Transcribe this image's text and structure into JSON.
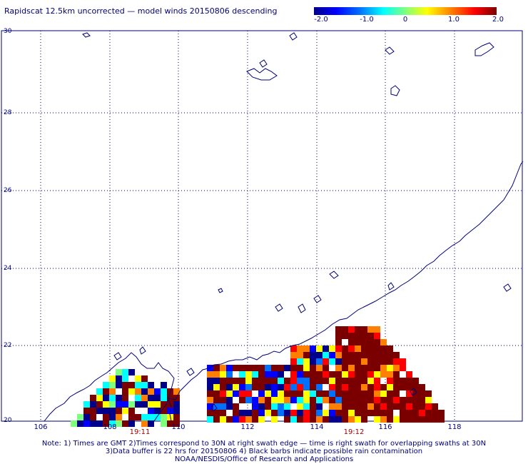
{
  "title": "Rapidscat 12.5km uncorrected — model winds 20150806 descending",
  "colorbar": {
    "ticks": [
      "-2.0",
      "-1.0",
      "0",
      "1.0",
      "2.0"
    ],
    "colors": [
      "#00008a",
      "#0000ff",
      "#0070ff",
      "#00ffff",
      "#7fff7f",
      "#ffff00",
      "#ff8000",
      "#ff0000",
      "#7a0000"
    ]
  },
  "map": {
    "lon_range": [
      105.5,
      120
    ],
    "lat_range": [
      20,
      30
    ],
    "lat_labels": [
      "30",
      "28",
      "26",
      "24",
      "22",
      "20"
    ],
    "lon_labels": [
      "106",
      "108",
      "110",
      "112",
      "114",
      "116",
      "118"
    ],
    "time_labels": [
      {
        "lon": 108.9,
        "text": "19:11"
      },
      {
        "lon": 114.9,
        "text": "19:12"
      }
    ],
    "coastline_color": "#00007a",
    "grid": "dotted"
  },
  "notes": [
    "Note: 1) Times are GMT 2)Times correspond to 30N at right swath edge — time is right swath for overlapping swaths at 30N",
    "3)Data buffer is 22 hrs for 20150806 4) Black barbs indicate possible rain contamination",
    "NOAA/NESDIS/Office of Research and Applications"
  ]
}
